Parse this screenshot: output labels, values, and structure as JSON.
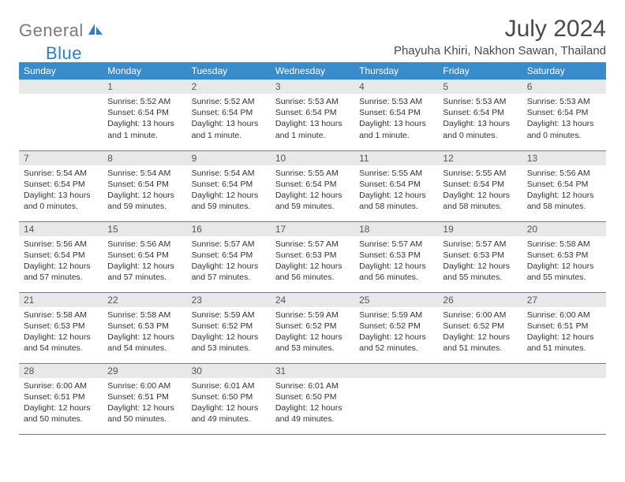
{
  "logo": {
    "general": "General",
    "blue": "Blue"
  },
  "title": "July 2024",
  "location": "Phayuha Khiri, Nakhon Sawan, Thailand",
  "colors": {
    "header_bg": "#3a8bc9",
    "header_fg": "#ffffff",
    "daynum_bg": "#e8e8e8",
    "row_divider": "#3a8bc9",
    "logo_gray": "#7a7a7a",
    "logo_blue": "#2d7dc8"
  },
  "weekdays": [
    "Sunday",
    "Monday",
    "Tuesday",
    "Wednesday",
    "Thursday",
    "Friday",
    "Saturday"
  ],
  "grid": {
    "start_weekday": 1,
    "days_in_month": 31
  },
  "days": {
    "1": {
      "sunrise": "5:52 AM",
      "sunset": "6:54 PM",
      "daylight": "13 hours and 1 minute."
    },
    "2": {
      "sunrise": "5:52 AM",
      "sunset": "6:54 PM",
      "daylight": "13 hours and 1 minute."
    },
    "3": {
      "sunrise": "5:53 AM",
      "sunset": "6:54 PM",
      "daylight": "13 hours and 1 minute."
    },
    "4": {
      "sunrise": "5:53 AM",
      "sunset": "6:54 PM",
      "daylight": "13 hours and 1 minute."
    },
    "5": {
      "sunrise": "5:53 AM",
      "sunset": "6:54 PM",
      "daylight": "13 hours and 0 minutes."
    },
    "6": {
      "sunrise": "5:53 AM",
      "sunset": "6:54 PM",
      "daylight": "13 hours and 0 minutes."
    },
    "7": {
      "sunrise": "5:54 AM",
      "sunset": "6:54 PM",
      "daylight": "13 hours and 0 minutes."
    },
    "8": {
      "sunrise": "5:54 AM",
      "sunset": "6:54 PM",
      "daylight": "12 hours and 59 minutes."
    },
    "9": {
      "sunrise": "5:54 AM",
      "sunset": "6:54 PM",
      "daylight": "12 hours and 59 minutes."
    },
    "10": {
      "sunrise": "5:55 AM",
      "sunset": "6:54 PM",
      "daylight": "12 hours and 59 minutes."
    },
    "11": {
      "sunrise": "5:55 AM",
      "sunset": "6:54 PM",
      "daylight": "12 hours and 58 minutes."
    },
    "12": {
      "sunrise": "5:55 AM",
      "sunset": "6:54 PM",
      "daylight": "12 hours and 58 minutes."
    },
    "13": {
      "sunrise": "5:56 AM",
      "sunset": "6:54 PM",
      "daylight": "12 hours and 58 minutes."
    },
    "14": {
      "sunrise": "5:56 AM",
      "sunset": "6:54 PM",
      "daylight": "12 hours and 57 minutes."
    },
    "15": {
      "sunrise": "5:56 AM",
      "sunset": "6:54 PM",
      "daylight": "12 hours and 57 minutes."
    },
    "16": {
      "sunrise": "5:57 AM",
      "sunset": "6:54 PM",
      "daylight": "12 hours and 57 minutes."
    },
    "17": {
      "sunrise": "5:57 AM",
      "sunset": "6:53 PM",
      "daylight": "12 hours and 56 minutes."
    },
    "18": {
      "sunrise": "5:57 AM",
      "sunset": "6:53 PM",
      "daylight": "12 hours and 56 minutes."
    },
    "19": {
      "sunrise": "5:57 AM",
      "sunset": "6:53 PM",
      "daylight": "12 hours and 55 minutes."
    },
    "20": {
      "sunrise": "5:58 AM",
      "sunset": "6:53 PM",
      "daylight": "12 hours and 55 minutes."
    },
    "21": {
      "sunrise": "5:58 AM",
      "sunset": "6:53 PM",
      "daylight": "12 hours and 54 minutes."
    },
    "22": {
      "sunrise": "5:58 AM",
      "sunset": "6:53 PM",
      "daylight": "12 hours and 54 minutes."
    },
    "23": {
      "sunrise": "5:59 AM",
      "sunset": "6:52 PM",
      "daylight": "12 hours and 53 minutes."
    },
    "24": {
      "sunrise": "5:59 AM",
      "sunset": "6:52 PM",
      "daylight": "12 hours and 53 minutes."
    },
    "25": {
      "sunrise": "5:59 AM",
      "sunset": "6:52 PM",
      "daylight": "12 hours and 52 minutes."
    },
    "26": {
      "sunrise": "6:00 AM",
      "sunset": "6:52 PM",
      "daylight": "12 hours and 51 minutes."
    },
    "27": {
      "sunrise": "6:00 AM",
      "sunset": "6:51 PM",
      "daylight": "12 hours and 51 minutes."
    },
    "28": {
      "sunrise": "6:00 AM",
      "sunset": "6:51 PM",
      "daylight": "12 hours and 50 minutes."
    },
    "29": {
      "sunrise": "6:00 AM",
      "sunset": "6:51 PM",
      "daylight": "12 hours and 50 minutes."
    },
    "30": {
      "sunrise": "6:01 AM",
      "sunset": "6:50 PM",
      "daylight": "12 hours and 49 minutes."
    },
    "31": {
      "sunrise": "6:01 AM",
      "sunset": "6:50 PM",
      "daylight": "12 hours and 49 minutes."
    }
  },
  "labels": {
    "sunrise": "Sunrise:",
    "sunset": "Sunset:",
    "daylight": "Daylight:"
  }
}
